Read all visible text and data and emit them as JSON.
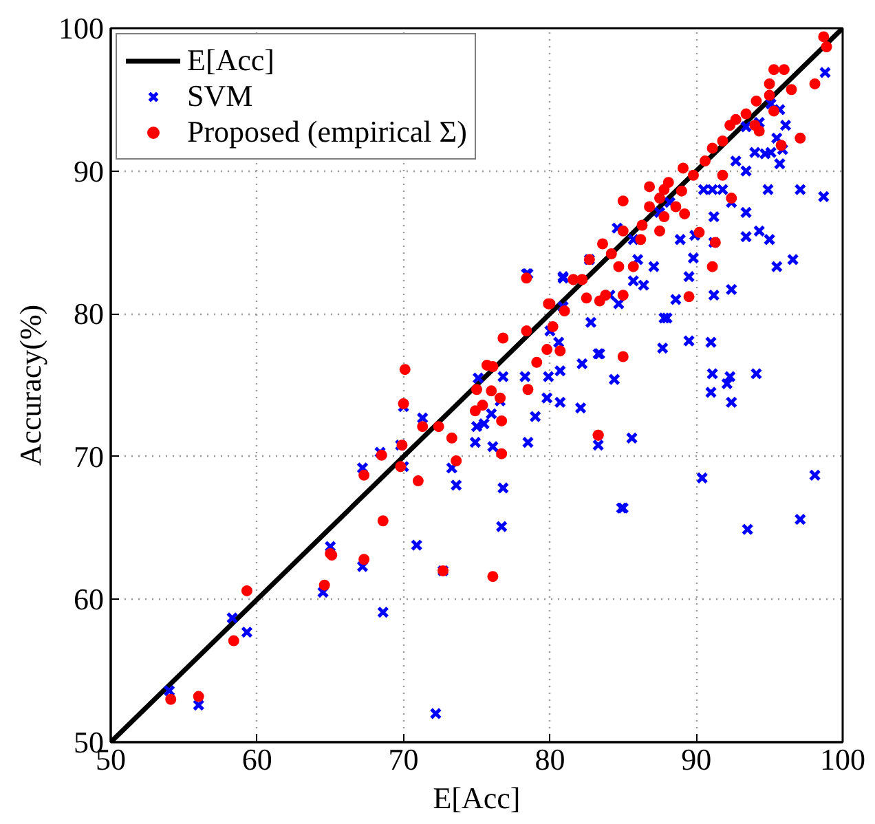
{
  "chart_data": {
    "type": "scatter",
    "xlabel": "E[Acc]",
    "ylabel": "Accuracy(%)",
    "xlim": [
      50,
      100
    ],
    "ylim": [
      50,
      100
    ],
    "xticks": [
      50,
      60,
      70,
      80,
      90,
      100
    ],
    "yticks": [
      50,
      60,
      70,
      80,
      90,
      100
    ],
    "grid": true,
    "legend": "top left",
    "series": [
      {
        "name": "E[Acc]",
        "type": "line",
        "color": "#000000",
        "marker": "none",
        "line_style": "solid",
        "x": [
          50,
          100
        ],
        "values": [
          50,
          100
        ]
      },
      {
        "name": "SVM",
        "color": "#0000ff",
        "marker": "x",
        "x": [
          54.0,
          56.0,
          58.3,
          59.3,
          64.5,
          65.0,
          67.2,
          67.2,
          68.6,
          68.4,
          69.8,
          70.0,
          70.0,
          71.3,
          70.9,
          72.2,
          72.7,
          73.3,
          73.6,
          74.9,
          75.0,
          75.5,
          76.0,
          76.6,
          75.1,
          76.8,
          76.1,
          76.8,
          76.7,
          78.3,
          79.0,
          78.5,
          79.8,
          80.7,
          82.1,
          79.9,
          80.7,
          82.2,
          83.4,
          84.4,
          83.3,
          84.9,
          83.3,
          85.6,
          85.0,
          87.7,
          88.0,
          89.5,
          91.0,
          91.1,
          92.3,
          92.1,
          91.0,
          92.4,
          94.1,
          90.4,
          98.1,
          97.1,
          93.5,
          78.4,
          80.9,
          82.7,
          98.8,
          98.7,
          97.1,
          96.1,
          95.7,
          95.5,
          94.9,
          95.0,
          95.5,
          96.6,
          94.3,
          93.4,
          92.4,
          93.4,
          91.2,
          91.2,
          92.4,
          91.2,
          89.8,
          89.5,
          88.6,
          87.8,
          87.1,
          86.4,
          85.7,
          84.7,
          84.1,
          82.8,
          80.9,
          78.5,
          84.6,
          87.5,
          88.2,
          90.5,
          91.8,
          93.4,
          94.0,
          94.7,
          95.1,
          95.7,
          95.9,
          92.7,
          93.4,
          94.3,
          95.1,
          91.1,
          85.7,
          88.9,
          89.9,
          86.0,
          80.6,
          80.0,
          80.9
        ],
        "values": [
          53.6,
          52.6,
          58.7,
          57.7,
          60.5,
          63.7,
          62.3,
          69.2,
          59.1,
          70.3,
          70.8,
          73.5,
          69.3,
          72.7,
          63.8,
          52.0,
          62.0,
          69.2,
          68.0,
          71.0,
          72.1,
          72.3,
          73.0,
          73.9,
          75.5,
          75.6,
          70.7,
          67.8,
          65.1,
          75.6,
          72.8,
          71.0,
          74.1,
          73.8,
          73.4,
          75.6,
          76.0,
          76.5,
          77.2,
          75.4,
          70.8,
          66.4,
          77.2,
          71.3,
          66.4,
          77.6,
          79.7,
          78.1,
          78.0,
          75.8,
          75.6,
          75.1,
          74.5,
          73.8,
          75.8,
          68.5,
          68.7,
          65.6,
          64.9,
          82.8,
          82.5,
          83.8,
          96.9,
          88.2,
          88.7,
          93.2,
          94.3,
          92.3,
          88.7,
          85.2,
          83.3,
          83.8,
          85.8,
          85.4,
          87.8,
          87.1,
          86.8,
          85.0,
          81.7,
          81.3,
          83.9,
          82.6,
          81.0,
          79.7,
          83.3,
          82.0,
          82.3,
          80.7,
          81.3,
          79.4,
          82.6,
          82.8,
          86.0,
          87.1,
          87.8,
          88.7,
          88.7,
          90.0,
          91.3,
          91.2,
          91.3,
          90.5,
          91.5,
          90.7,
          93.1,
          93.4,
          94.7,
          88.7,
          85.2,
          85.2,
          85.5,
          83.8,
          78.0,
          78.8,
          80.5
        ]
      },
      {
        "name": "Proposed (empirical Σ)",
        "color": "#ff0000",
        "marker": "circle",
        "x": [
          54.1,
          56.0,
          58.4,
          59.3,
          64.6,
          65.1,
          67.3,
          65.0,
          67.3,
          68.5,
          68.6,
          69.8,
          69.9,
          70.0,
          70.1,
          71.0,
          71.3,
          72.4,
          72.7,
          73.3,
          73.6,
          74.9,
          75.0,
          75.4,
          75.7,
          76.0,
          76.1,
          76.1,
          76.6,
          76.7,
          76.7,
          76.8,
          78.5,
          79.1,
          79.8,
          80.7,
          83.3,
          85.0,
          83.3,
          78.4,
          79.9,
          78.4,
          81.6,
          82.2,
          82.7,
          98.7,
          98.9,
          98.1,
          97.1,
          96.5,
          96.0,
          95.3,
          95.0,
          95.8,
          95.0,
          94.1,
          93.4,
          92.7,
          92.3,
          91.8,
          91.1,
          90.6,
          89.8,
          89.1,
          88.1,
          87.8,
          87.5,
          86.8,
          85.0,
          88.6,
          89.2,
          90.2,
          91.1,
          86.3,
          86.2,
          83.6,
          84.2,
          84.7,
          82.2,
          81.6,
          80.0,
          81.0,
          80.2,
          82.5,
          83.8,
          87.5,
          87.8,
          91.3,
          92.4,
          91.8,
          94.0,
          94.3,
          95.3,
          85.0,
          85.7,
          89.5,
          83.4,
          85.0,
          86.8,
          89.0
        ],
        "values": [
          53.0,
          53.2,
          57.1,
          60.6,
          61.0,
          63.1,
          62.8,
          63.2,
          68.7,
          70.1,
          65.5,
          69.3,
          70.8,
          73.7,
          76.1,
          68.3,
          72.1,
          72.1,
          62.0,
          71.3,
          69.7,
          73.2,
          74.7,
          73.6,
          76.4,
          74.6,
          76.3,
          61.6,
          74.1,
          70.2,
          72.5,
          78.3,
          74.7,
          76.6,
          77.5,
          77.4,
          71.5,
          77.0,
          71.5,
          82.5,
          80.7,
          78.8,
          82.4,
          82.4,
          83.8,
          99.4,
          98.7,
          96.1,
          92.3,
          95.7,
          97.1,
          97.1,
          96.1,
          91.8,
          95.3,
          94.9,
          94.0,
          93.6,
          93.2,
          92.1,
          91.6,
          90.7,
          89.7,
          90.2,
          89.2,
          88.7,
          88.1,
          88.9,
          87.9,
          87.5,
          87.0,
          85.7,
          83.3,
          86.2,
          85.2,
          84.9,
          84.2,
          83.3,
          82.4,
          82.4,
          80.7,
          80.2,
          79.1,
          81.1,
          81.3,
          85.8,
          86.8,
          85.0,
          88.1,
          89.7,
          93.2,
          92.8,
          94.2,
          85.8,
          83.3,
          81.2,
          80.9,
          81.3,
          87.5,
          88.6
        ]
      }
    ]
  }
}
